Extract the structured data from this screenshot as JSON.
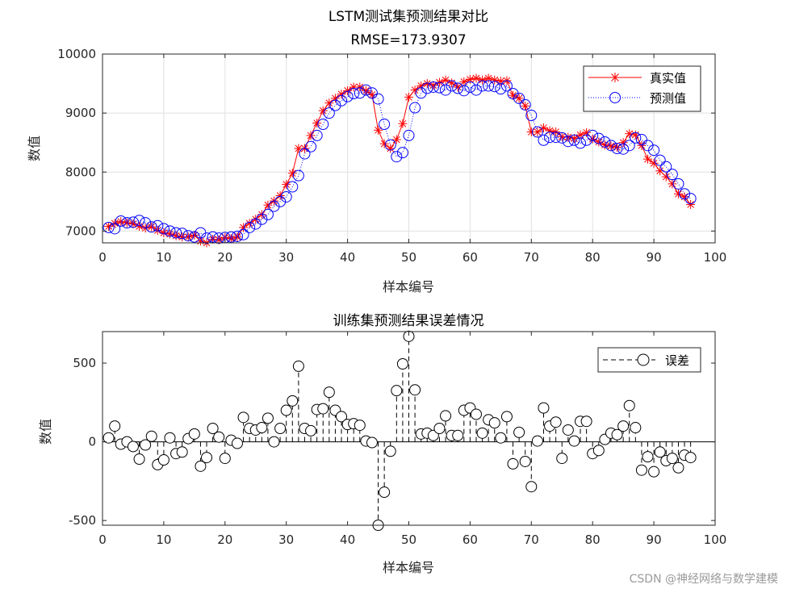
{
  "watermark": "CSDN @神经网络与数学建模",
  "colors": {
    "actual": "#ff0000",
    "predicted": "#0000ff",
    "error": "#000000",
    "grid": "#e0e0e0"
  },
  "chart_data": [
    {
      "type": "line",
      "title": "LSTM测试集预测结果对比",
      "subtitle": "RMSE=173.9307",
      "xlabel": "样本编号",
      "ylabel": "数值",
      "xlim": [
        0,
        100
      ],
      "ylim": [
        6800,
        10000
      ],
      "xticks": [
        0,
        10,
        20,
        30,
        40,
        50,
        60,
        70,
        80,
        90,
        100
      ],
      "yticks": [
        7000,
        8000,
        9000,
        10000
      ],
      "grid": true,
      "legend_position": "top-right",
      "series": [
        {
          "name": "真实值",
          "style": "red-solid-asterisk",
          "values": [
            7080,
            7130,
            7160,
            7140,
            7120,
            7080,
            7050,
            7070,
            7010,
            6970,
            6950,
            6920,
            6900,
            6900,
            6930,
            6830,
            6800,
            6860,
            6850,
            6890,
            6870,
            6900,
            7060,
            7130,
            7200,
            7280,
            7440,
            7510,
            7600,
            7790,
            7980,
            8400,
            8400,
            8620,
            8830,
            9040,
            9170,
            9250,
            9320,
            9380,
            9440,
            9440,
            9380,
            9310,
            8710,
            8480,
            8400,
            8550,
            8820,
            9270,
            9390,
            9460,
            9500,
            9470,
            9520,
            9560,
            9510,
            9440,
            9530,
            9570,
            9590,
            9560,
            9590,
            9560,
            9540,
            9550,
            9300,
            9250,
            9120,
            8680,
            8680,
            8750,
            8700,
            8680,
            8600,
            8590,
            8570,
            8630,
            8670,
            8560,
            8510,
            8460,
            8440,
            8420,
            8500,
            8650,
            8630,
            8450,
            8220,
            8150,
            8020,
            7920,
            7800,
            7630,
            7580,
            7450
          ]
        },
        {
          "name": "预测值",
          "style": "blue-dotted-circle",
          "values": [
            7060,
            7040,
            7170,
            7140,
            7150,
            7180,
            7140,
            7070,
            7090,
            7040,
            7000,
            6970,
            6960,
            6920,
            6900,
            6970,
            6880,
            6900,
            6880,
            6890,
            6900,
            6910,
            6940,
            7060,
            7120,
            7200,
            7280,
            7420,
            7500,
            7580,
            7750,
            7940,
            8310,
            8430,
            8620,
            8810,
            9000,
            9130,
            9210,
            9280,
            9330,
            9340,
            9390,
            9340,
            9240,
            8810,
            8460,
            8260,
            8330,
            8620,
            9090,
            9340,
            9420,
            9440,
            9430,
            9390,
            9460,
            9420,
            9380,
            9440,
            9390,
            9460,
            9460,
            9450,
            9410,
            9460,
            9330,
            9250,
            9140,
            8960,
            8680,
            8540,
            8590,
            8590,
            8580,
            8520,
            8540,
            8490,
            8540,
            8620,
            8570,
            8510,
            8450,
            8400,
            8390,
            8450,
            8580,
            8550,
            8450,
            8370,
            8200,
            8090,
            7960,
            7800,
            7630,
            7550
          ]
        }
      ]
    },
    {
      "type": "stem",
      "title": "训练集预测结果误差情况",
      "xlabel": "样本编号",
      "ylabel": "数值",
      "xlim": [
        0,
        100
      ],
      "ylim": [
        -530,
        700
      ],
      "xticks": [
        0,
        10,
        20,
        30,
        40,
        50,
        60,
        70,
        80,
        90,
        100
      ],
      "yticks": [
        -500,
        0,
        500
      ],
      "grid": false,
      "legend_position": "top-right",
      "series": [
        {
          "name": "误差",
          "style": "black-dashed-circle",
          "values": [
            25,
            100,
            -15,
            0,
            -30,
            -110,
            -20,
            35,
            -145,
            -115,
            25,
            -75,
            -65,
            20,
            50,
            -155,
            -100,
            85,
            30,
            -105,
            10,
            -10,
            155,
            85,
            75,
            90,
            150,
            0,
            85,
            200,
            260,
            480,
            85,
            70,
            205,
            210,
            315,
            200,
            160,
            110,
            115,
            105,
            5,
            -5,
            -530,
            -320,
            -60,
            325,
            495,
            670,
            330,
            50,
            55,
            40,
            85,
            165,
            40,
            40,
            200,
            215,
            175,
            55,
            140,
            120,
            25,
            160,
            -140,
            60,
            -125,
            -285,
            5,
            215,
            100,
            125,
            -105,
            75,
            5,
            130,
            130,
            -75,
            -55,
            15,
            55,
            45,
            100,
            230,
            90,
            -180,
            -95,
            -190,
            -65,
            -120,
            -105,
            -165,
            -85,
            -100
          ]
        }
      ]
    }
  ]
}
